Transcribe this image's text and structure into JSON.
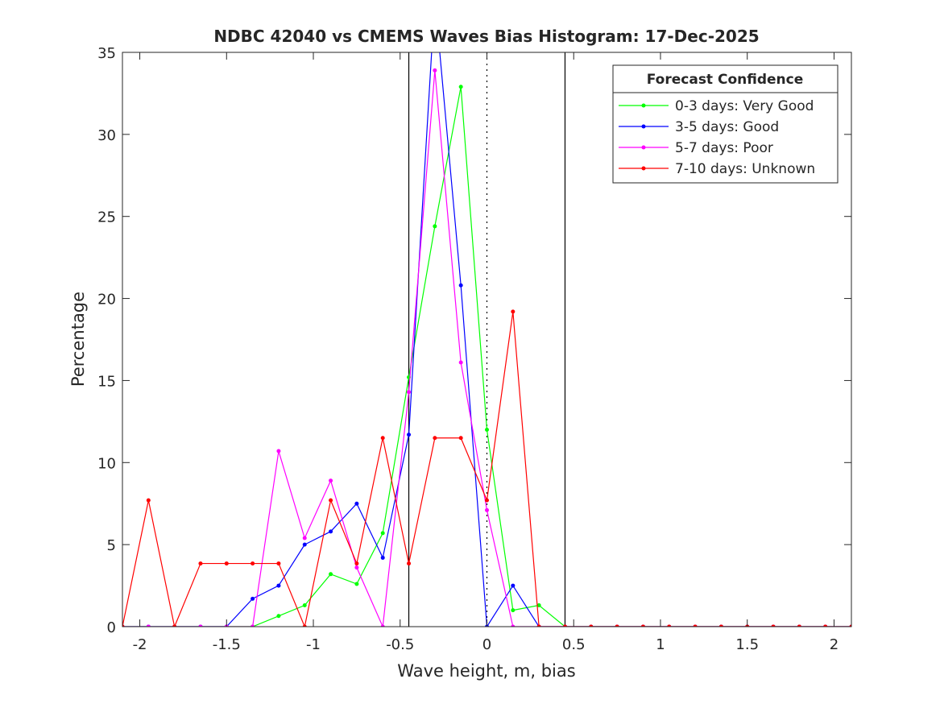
{
  "chart_data": {
    "type": "line",
    "title": "NDBC 42040 vs CMEMS Waves Bias Histogram: 17-Dec-2025",
    "xlabel": "Wave height, m, bias",
    "ylabel": "Percentage",
    "xlim": [
      -2.1,
      2.1
    ],
    "ylim": [
      0,
      35
    ],
    "xticks": [
      -2,
      -1.5,
      -1,
      -0.5,
      0,
      0.5,
      1,
      1.5,
      2
    ],
    "xtick_labels": [
      "-2",
      "-1.5",
      "-1",
      "-0.5",
      "0",
      "0.5",
      "1",
      "1.5",
      "2"
    ],
    "yticks": [
      0,
      5,
      10,
      15,
      20,
      25,
      30,
      35
    ],
    "ytick_labels": [
      "0",
      "5",
      "10",
      "15",
      "20",
      "25",
      "30",
      "35"
    ],
    "grid": false,
    "reference_lines": [
      {
        "x": -0.45,
        "style": "solid"
      },
      {
        "x": 0,
        "style": "dotted"
      },
      {
        "x": 0.45,
        "style": "solid"
      }
    ],
    "legend": {
      "title": "Forecast Confidence",
      "placement": "top-right"
    },
    "x": [
      -2.1,
      -1.95,
      -1.8,
      -1.65,
      -1.5,
      -1.35,
      -1.2,
      -1.05,
      -0.9,
      -0.75,
      -0.6,
      -0.45,
      -0.3,
      -0.15,
      0,
      0.15,
      0.3,
      0.45,
      0.6,
      0.75,
      0.9,
      1.05,
      1.2,
      1.35,
      1.5,
      1.65,
      1.8,
      1.95,
      2.1
    ],
    "series": [
      {
        "name": "0-3 days: Very Good",
        "color": "#00ff00",
        "values": [
          0,
          0,
          0,
          0,
          0,
          0,
          0.65,
          1.3,
          3.2,
          2.6,
          5.7,
          15.2,
          24.4,
          32.9,
          12.0,
          1.0,
          1.3,
          0,
          0,
          0,
          0,
          0,
          0,
          0,
          0,
          0,
          0,
          0,
          0
        ]
      },
      {
        "name": "3-5 days: Good",
        "color": "#0000ff",
        "values": [
          0,
          0,
          0,
          0,
          0,
          1.7,
          2.5,
          5.0,
          5.8,
          7.5,
          4.2,
          11.7,
          38.3,
          20.8,
          0,
          2.5,
          0,
          0,
          0,
          0,
          0,
          0,
          0,
          0,
          0,
          0,
          0,
          0,
          0
        ]
      },
      {
        "name": "5-7 days: Poor",
        "color": "#ff00ff",
        "values": [
          0,
          0,
          0,
          0,
          0,
          0,
          10.7,
          5.4,
          8.9,
          3.6,
          0,
          14.3,
          33.9,
          16.1,
          7.1,
          0,
          0,
          0,
          0,
          0,
          0,
          0,
          0,
          0,
          0,
          0,
          0,
          0,
          0
        ]
      },
      {
        "name": "7-10 days: Unknown",
        "color": "#ff0000",
        "values": [
          0,
          7.7,
          0,
          3.85,
          3.85,
          3.85,
          3.85,
          0,
          7.7,
          3.85,
          11.5,
          3.85,
          11.5,
          11.5,
          7.7,
          19.2,
          0,
          0,
          0,
          0,
          0,
          0,
          0,
          0,
          0,
          0,
          0,
          0,
          0
        ]
      }
    ]
  }
}
